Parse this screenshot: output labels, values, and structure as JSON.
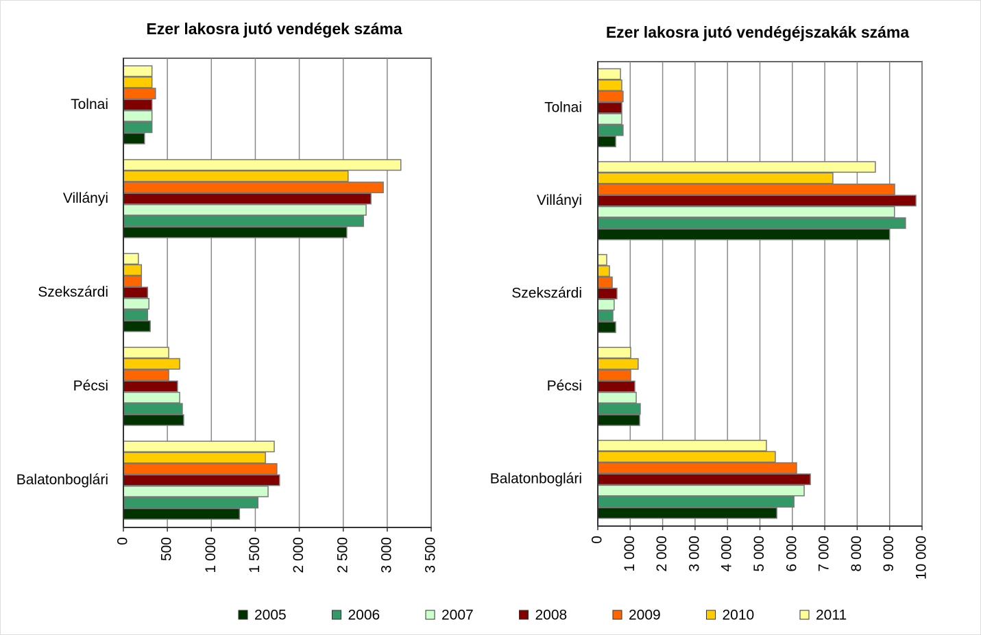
{
  "chart_data": [
    {
      "type": "hbar",
      "title": "Ezer lakosra jutó vendégek száma",
      "categories": [
        "Tolnai",
        "Villányi",
        "Szekszárdi",
        "Pécsi",
        "Balatonboglári"
      ],
      "series": [
        {
          "name": "2005",
          "color": "#003300",
          "values": [
            240,
            2540,
            305,
            685,
            1320
          ]
        },
        {
          "name": "2006",
          "color": "#339966",
          "values": [
            325,
            2730,
            275,
            670,
            1530
          ]
        },
        {
          "name": "2007",
          "color": "#ccffcc",
          "values": [
            325,
            2760,
            290,
            640,
            1645
          ]
        },
        {
          "name": "2008",
          "color": "#800000",
          "values": [
            325,
            2815,
            275,
            615,
            1775
          ]
        },
        {
          "name": "2009",
          "color": "#ff6600",
          "values": [
            365,
            2955,
            205,
            515,
            1745
          ]
        },
        {
          "name": "2010",
          "color": "#ffcc00",
          "values": [
            325,
            2555,
            205,
            640,
            1615
          ]
        },
        {
          "name": "2011",
          "color": "#ffff99",
          "values": [
            325,
            3155,
            170,
            515,
            1715
          ]
        }
      ],
      "xlim": [
        0,
        3500
      ],
      "xticks": [
        0,
        500,
        {
          "value": 1000,
          "label": "1 000"
        },
        {
          "value": 1500,
          "label": "1 500"
        },
        {
          "value": 2000,
          "label": "2 000"
        },
        {
          "value": 2500,
          "label": "2 500"
        },
        {
          "value": 3000,
          "label": "3 000"
        },
        {
          "value": 3500,
          "label": "3 500"
        }
      ],
      "grid": true
    },
    {
      "type": "hbar",
      "title": "Ezer lakosra jutó vendégéjszakák száma",
      "categories": [
        "Tolnai",
        "Villányi",
        "Szekszárdi",
        "Pécsi",
        "Balatonboglári"
      ],
      "series": [
        {
          "name": "2005",
          "color": "#003300",
          "values": [
            550,
            9000,
            550,
            1290,
            5520
          ]
        },
        {
          "name": "2006",
          "color": "#339966",
          "values": [
            780,
            9490,
            465,
            1310,
            6050
          ]
        },
        {
          "name": "2007",
          "color": "#ccffcc",
          "values": [
            740,
            9150,
            505,
            1185,
            6365
          ]
        },
        {
          "name": "2008",
          "color": "#800000",
          "values": [
            740,
            9810,
            590,
            1140,
            6555
          ]
        },
        {
          "name": "2009",
          "color": "#ff6600",
          "values": [
            780,
            9155,
            445,
            1015,
            6130
          ]
        },
        {
          "name": "2010",
          "color": "#ffcc00",
          "values": [
            740,
            7250,
            360,
            1245,
            5475
          ]
        },
        {
          "name": "2011",
          "color": "#ffff99",
          "values": [
            700,
            8560,
            275,
            1015,
            5200
          ]
        }
      ],
      "xlim": [
        0,
        10000
      ],
      "xticks": [
        0,
        {
          "value": 1000,
          "label": "1 000"
        },
        {
          "value": 2000,
          "label": "2 000"
        },
        {
          "value": 3000,
          "label": "3 000"
        },
        {
          "value": 4000,
          "label": "4 000"
        },
        {
          "value": 5000,
          "label": "5 000"
        },
        {
          "value": 6000,
          "label": "6 000"
        },
        {
          "value": 7000,
          "label": "7 000"
        },
        {
          "value": 8000,
          "label": "8 000"
        },
        {
          "value": 9000,
          "label": "9 000"
        },
        {
          "value": 10000,
          "label": "10 000"
        }
      ],
      "grid": true
    }
  ]
}
